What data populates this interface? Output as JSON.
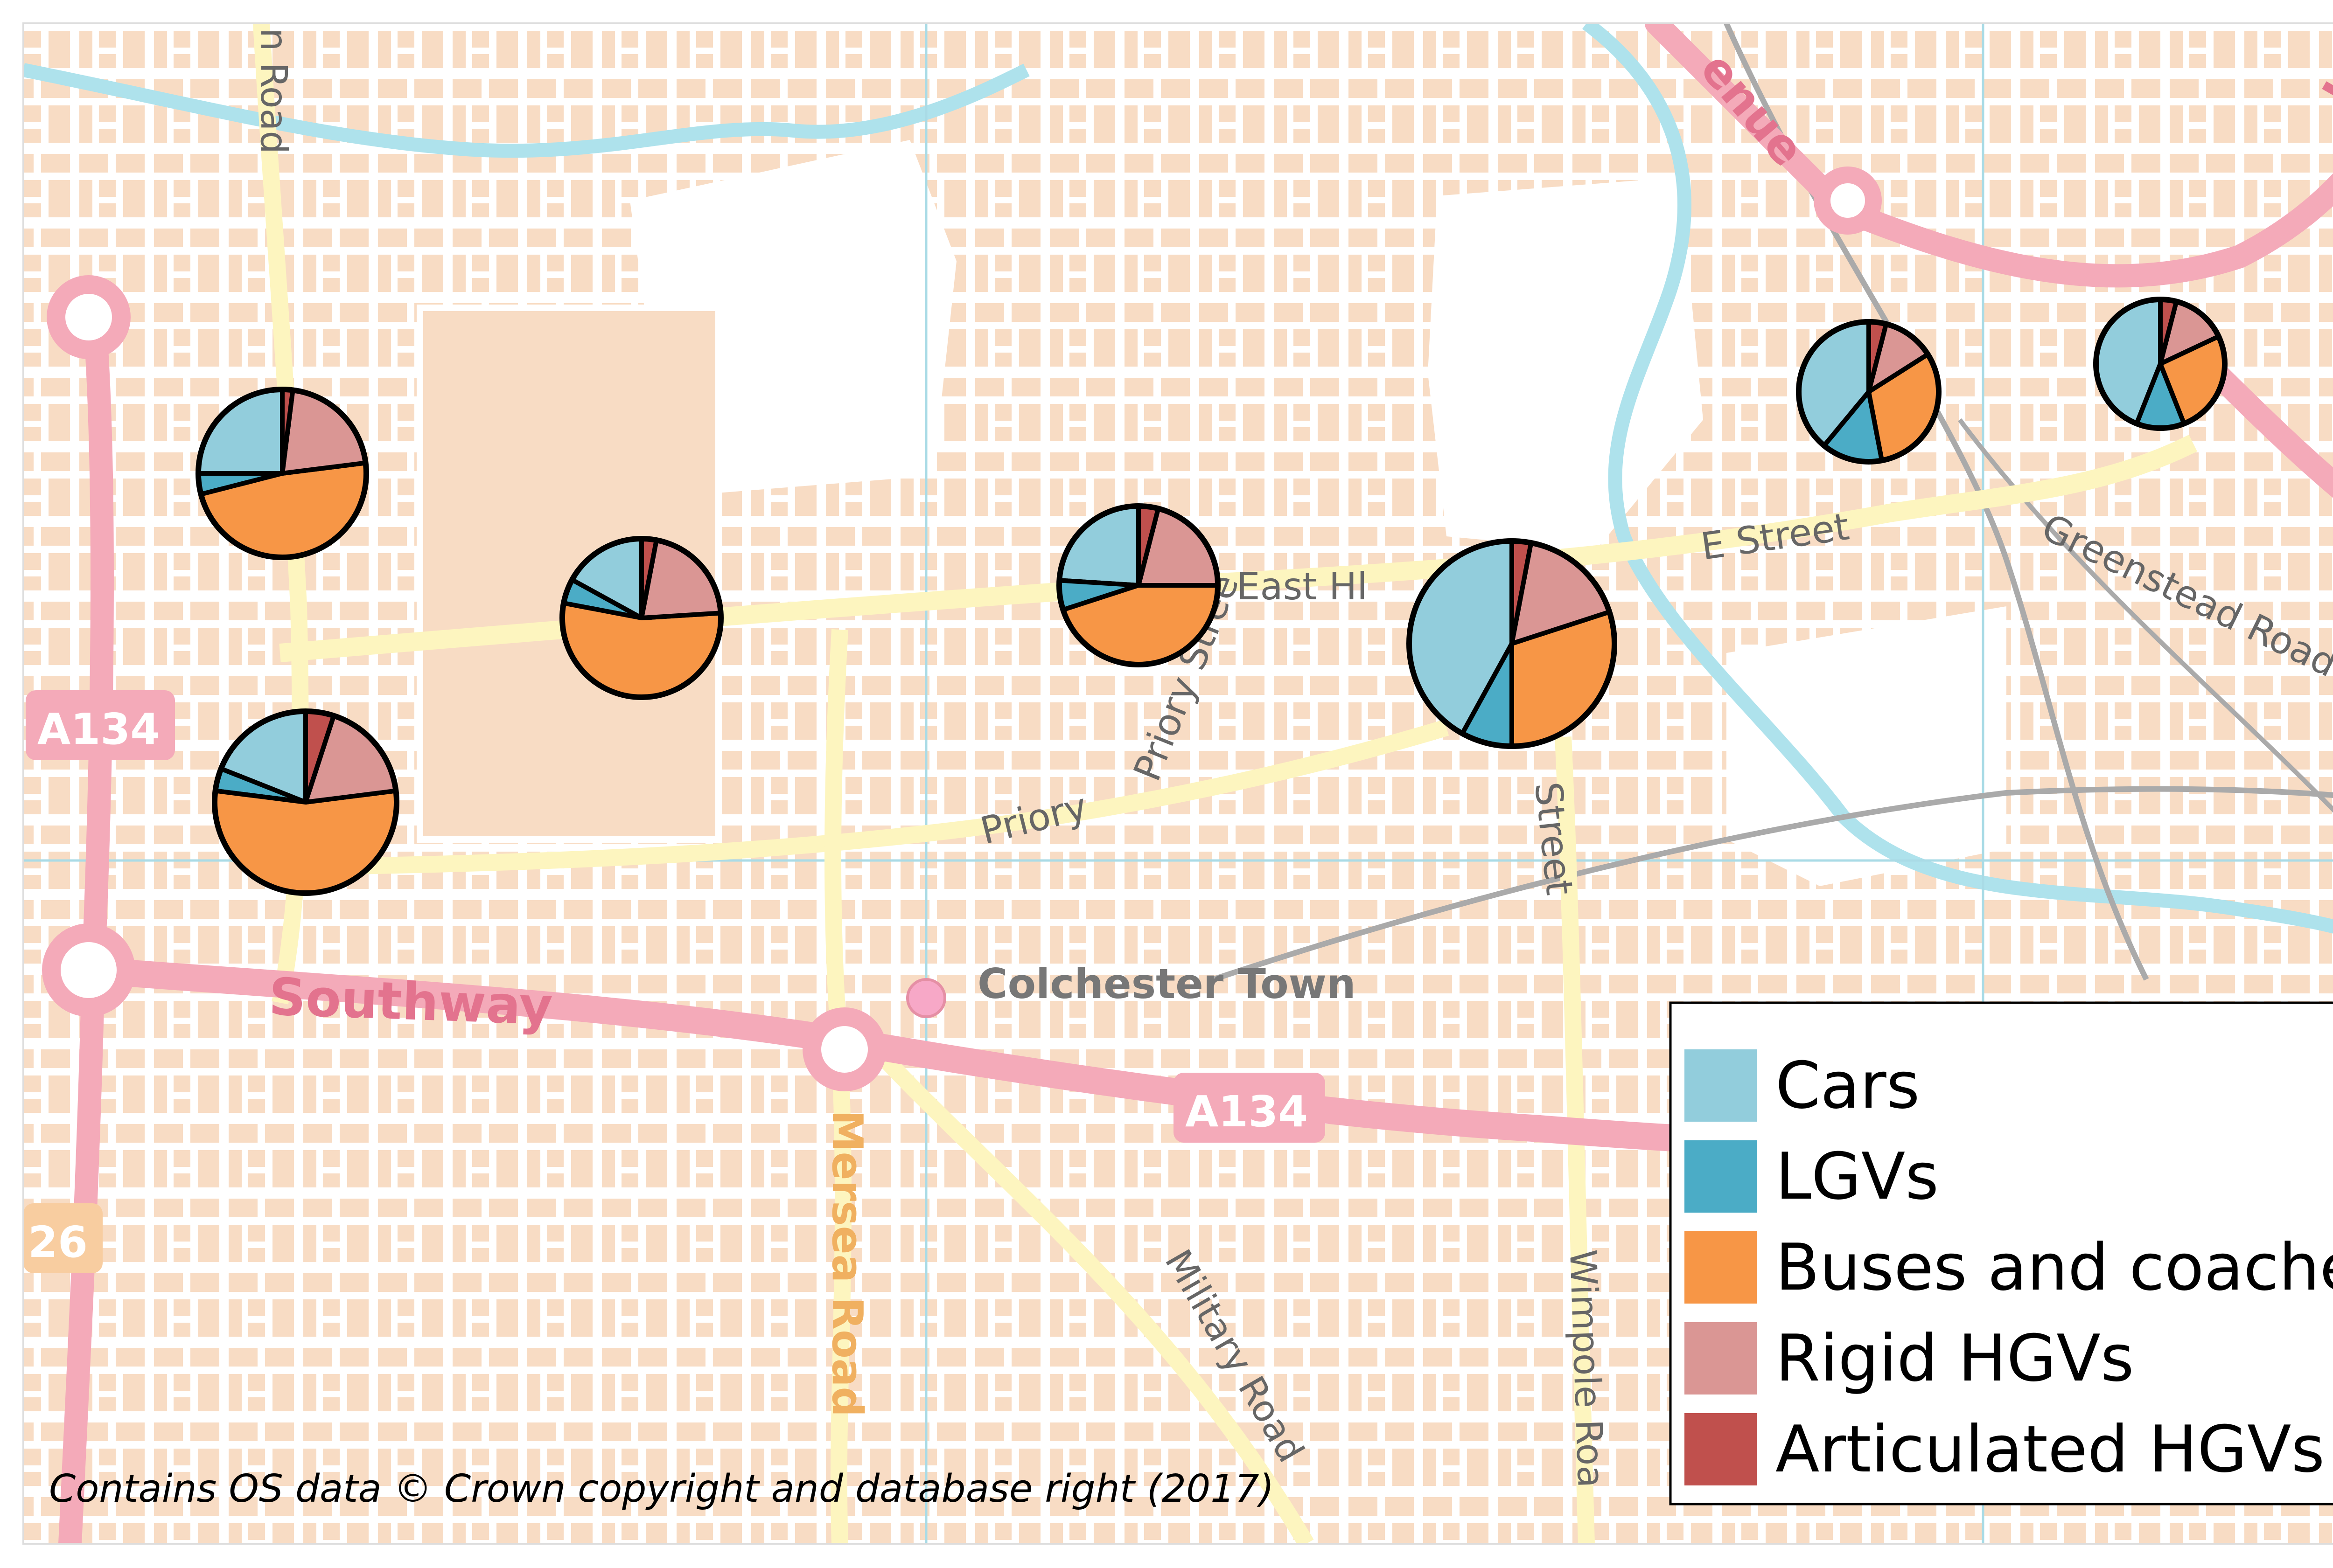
{
  "map_credit": "Contains OS data © Crown copyright and database right (2017)",
  "place_labels": {
    "southway": "Southway",
    "colchester_town": "Colchester Town",
    "a134_west": "A134",
    "a134_center": "A134",
    "a26": "26",
    "east_hill": "East Hl",
    "e_street": "E Street",
    "priory_street": "Priory Stree",
    "priory_street_b": "Priory",
    "street_south": "Street",
    "wimpole_road": "Wimpole Roa",
    "military_road": "Military Road",
    "mersea_road": "Mersea Road",
    "greenstead_road": "Greenstead Road",
    "n_road_top": "n Road",
    "avenue_top": "enue",
    "ha_top_right": "Ha"
  },
  "colors": {
    "cars": "#92cddc",
    "lgvs": "#4bacc6",
    "buses": "#f79646",
    "rigid": "#da9694",
    "artic": "#c0504d",
    "map_bg": "#ffffff",
    "block": "#f8dcc4",
    "road": "#ffffff",
    "minor_road": "#fdf5bf",
    "major_road": "#f4aab9",
    "water": "#aee2ec"
  },
  "legend": {
    "items": [
      {
        "label": "Cars",
        "color": "#92cddc"
      },
      {
        "label": "LGVs",
        "color": "#4bacc6"
      },
      {
        "label": "Buses and coaches",
        "color": "#f79646"
      },
      {
        "label": "Rigid HGVs",
        "color": "#da9694"
      },
      {
        "label": "Articulated HGVs",
        "color": "#c0504d"
      }
    ]
  },
  "chart_data": {
    "type": "pie",
    "title": "",
    "series_names": [
      "Cars",
      "LGVs",
      "Buses and coaches",
      "Rigid HGVs",
      "Articulated HGVs"
    ],
    "pies": [
      {
        "id": "north-west",
        "shares": [
          0.25,
          0.04,
          0.48,
          0.21,
          0.02
        ]
      },
      {
        "id": "south-west",
        "shares": [
          0.19,
          0.04,
          0.54,
          0.18,
          0.05
        ]
      },
      {
        "id": "west-central",
        "shares": [
          0.17,
          0.05,
          0.54,
          0.21,
          0.03
        ]
      },
      {
        "id": "central",
        "shares": [
          0.24,
          0.06,
          0.45,
          0.21,
          0.04
        ]
      },
      {
        "id": "east-hill-large",
        "shares": [
          0.42,
          0.08,
          0.3,
          0.17,
          0.03
        ]
      },
      {
        "id": "north-east",
        "shares": [
          0.39,
          0.14,
          0.31,
          0.12,
          0.04
        ]
      },
      {
        "id": "far-east",
        "shares": [
          0.44,
          0.12,
          0.26,
          0.14,
          0.04
        ]
      }
    ]
  }
}
